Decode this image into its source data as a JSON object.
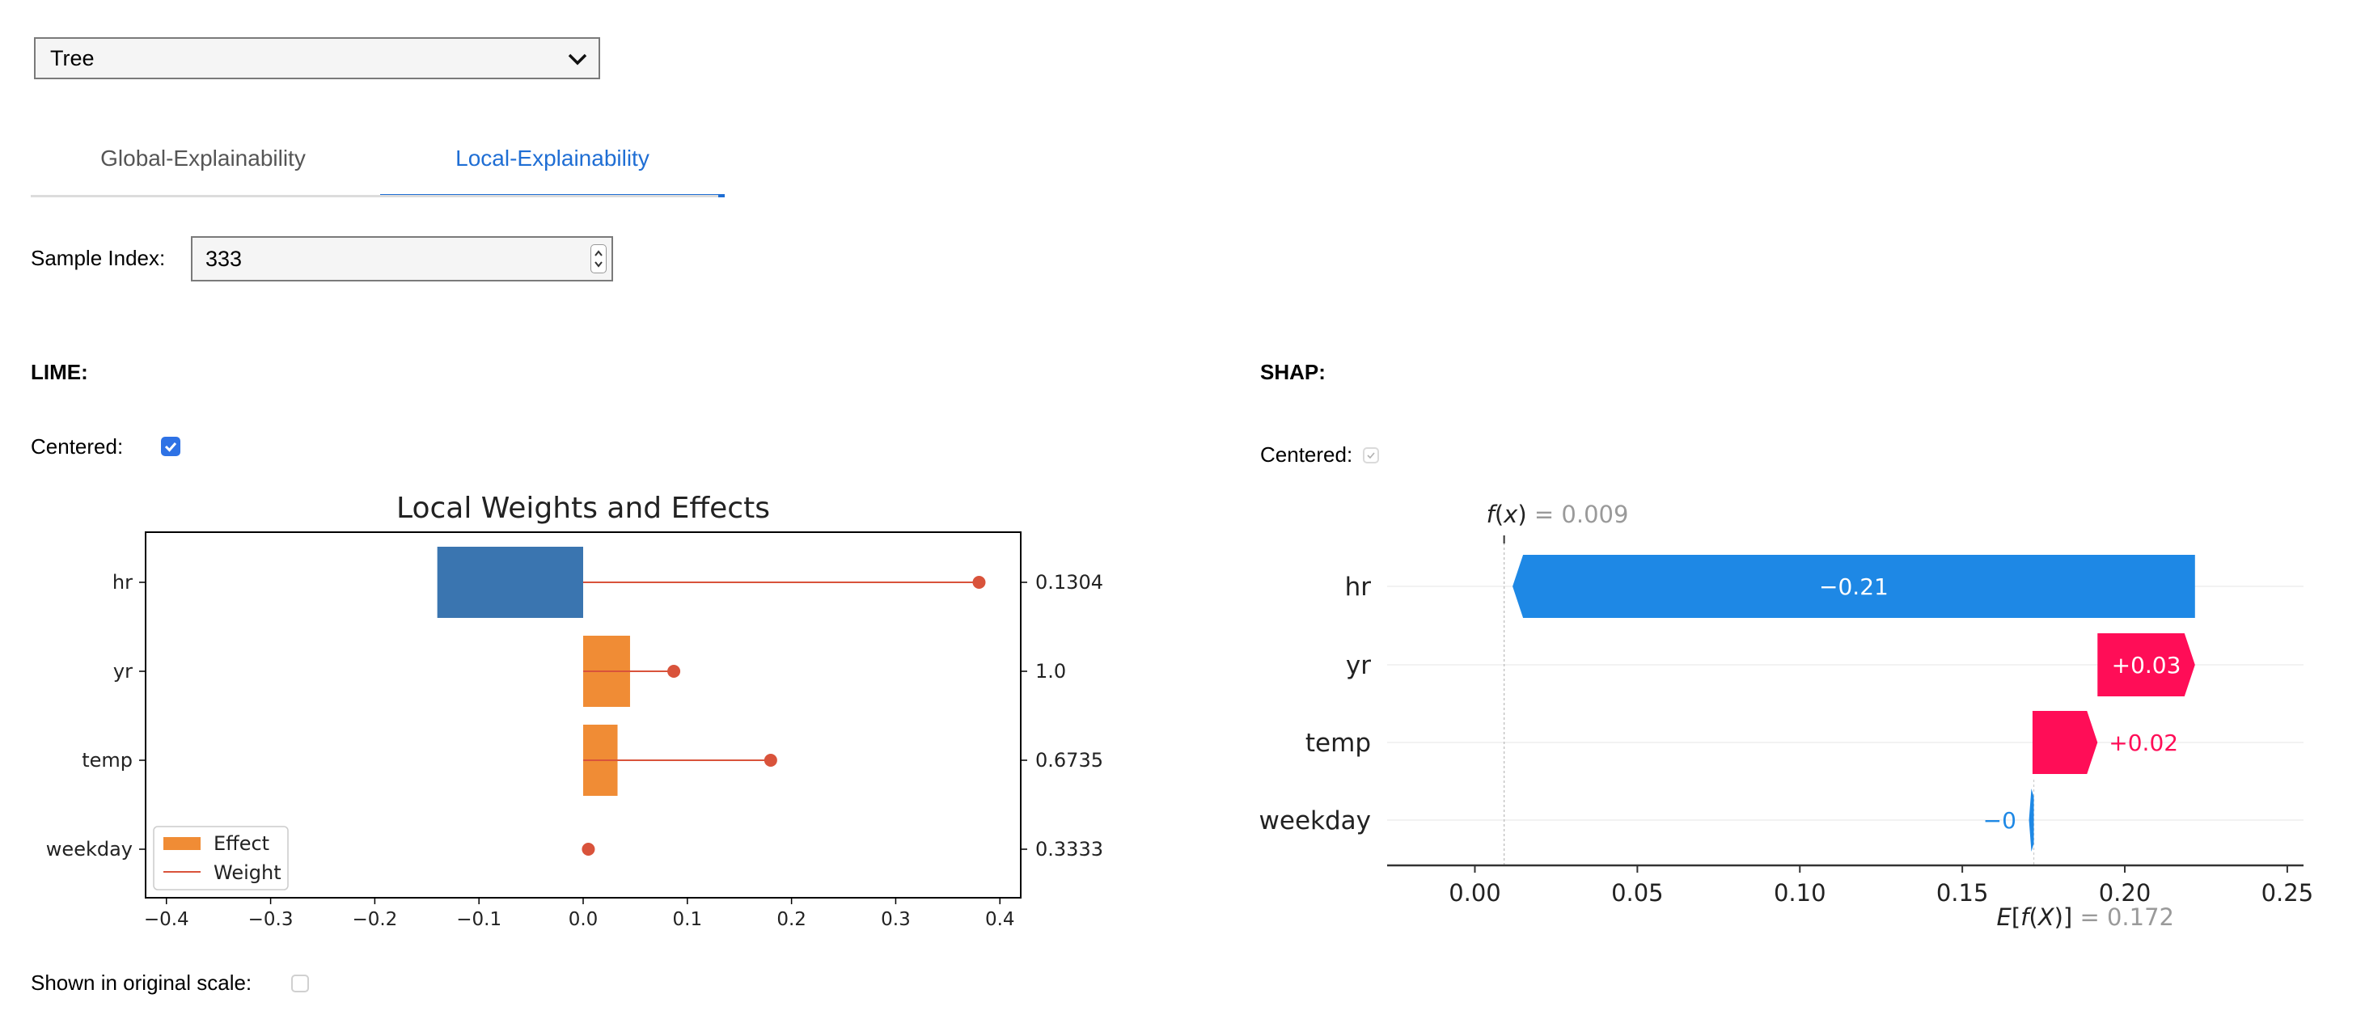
{
  "model_select": {
    "value": "Tree"
  },
  "tabs": [
    {
      "label": "Global-Explainability",
      "active": false
    },
    {
      "label": "Local-Explainability",
      "active": true
    }
  ],
  "sample": {
    "label": "Sample Index:",
    "value": "333"
  },
  "lime": {
    "heading": "LIME:",
    "centered_label": "Centered:",
    "centered_checked": true,
    "original_scale_label": "Shown in original scale:",
    "original_scale_checked": false
  },
  "shap": {
    "heading": "SHAP:",
    "centered_label": "Centered:",
    "centered_checked": true
  },
  "colors": {
    "effect_negative": "#3a75b0",
    "effect_positive": "#f08c35",
    "weight": "#d9533b",
    "shap_negative": "#1e88e5",
    "shap_positive": "#ff0d57",
    "active_tab": "#1f6ed4"
  },
  "chart_data": [
    {
      "type": "bar",
      "title": "Local Weights and Effects",
      "categories": [
        "hr",
        "yr",
        "temp",
        "weekday"
      ],
      "series": [
        {
          "name": "Effect",
          "values": [
            -0.14,
            0.045,
            0.033,
            0.0
          ]
        },
        {
          "name": "Weight",
          "values": [
            0.38,
            0.087,
            0.18,
            0.005
          ]
        }
      ],
      "right_tick_labels": [
        "0.1304",
        "1.0",
        "0.6735",
        "0.3333"
      ],
      "xlim": [
        -0.42,
        0.42
      ],
      "xticks": [
        -0.4,
        -0.3,
        -0.2,
        -0.1,
        0.0,
        0.1,
        0.2,
        0.3,
        0.4
      ],
      "xtick_labels": [
        "−0.4",
        "−0.3",
        "−0.2",
        "−0.1",
        "0.0",
        "0.1",
        "0.2",
        "0.3",
        "0.4"
      ],
      "legend": "lower-left",
      "grid": false
    },
    {
      "type": "bar",
      "title": "",
      "categories": [
        "hr",
        "yr",
        "temp",
        "weekday"
      ],
      "values": [
        -0.21,
        0.03,
        0.02,
        -0.0004
      ],
      "value_labels": [
        "−0.21",
        "+0.03",
        "+0.02",
        "−0"
      ],
      "base_value": 0.172,
      "output_value": 0.009,
      "fx_label": "= 0.009",
      "efx_label": "= 0.172",
      "xlim": [
        -0.027,
        0.255
      ],
      "xticks": [
        0.0,
        0.05,
        0.1,
        0.15,
        0.2,
        0.25
      ],
      "xtick_labels": [
        "0.00",
        "0.05",
        "0.10",
        "0.15",
        "0.20",
        "0.25"
      ],
      "grid": true
    }
  ]
}
